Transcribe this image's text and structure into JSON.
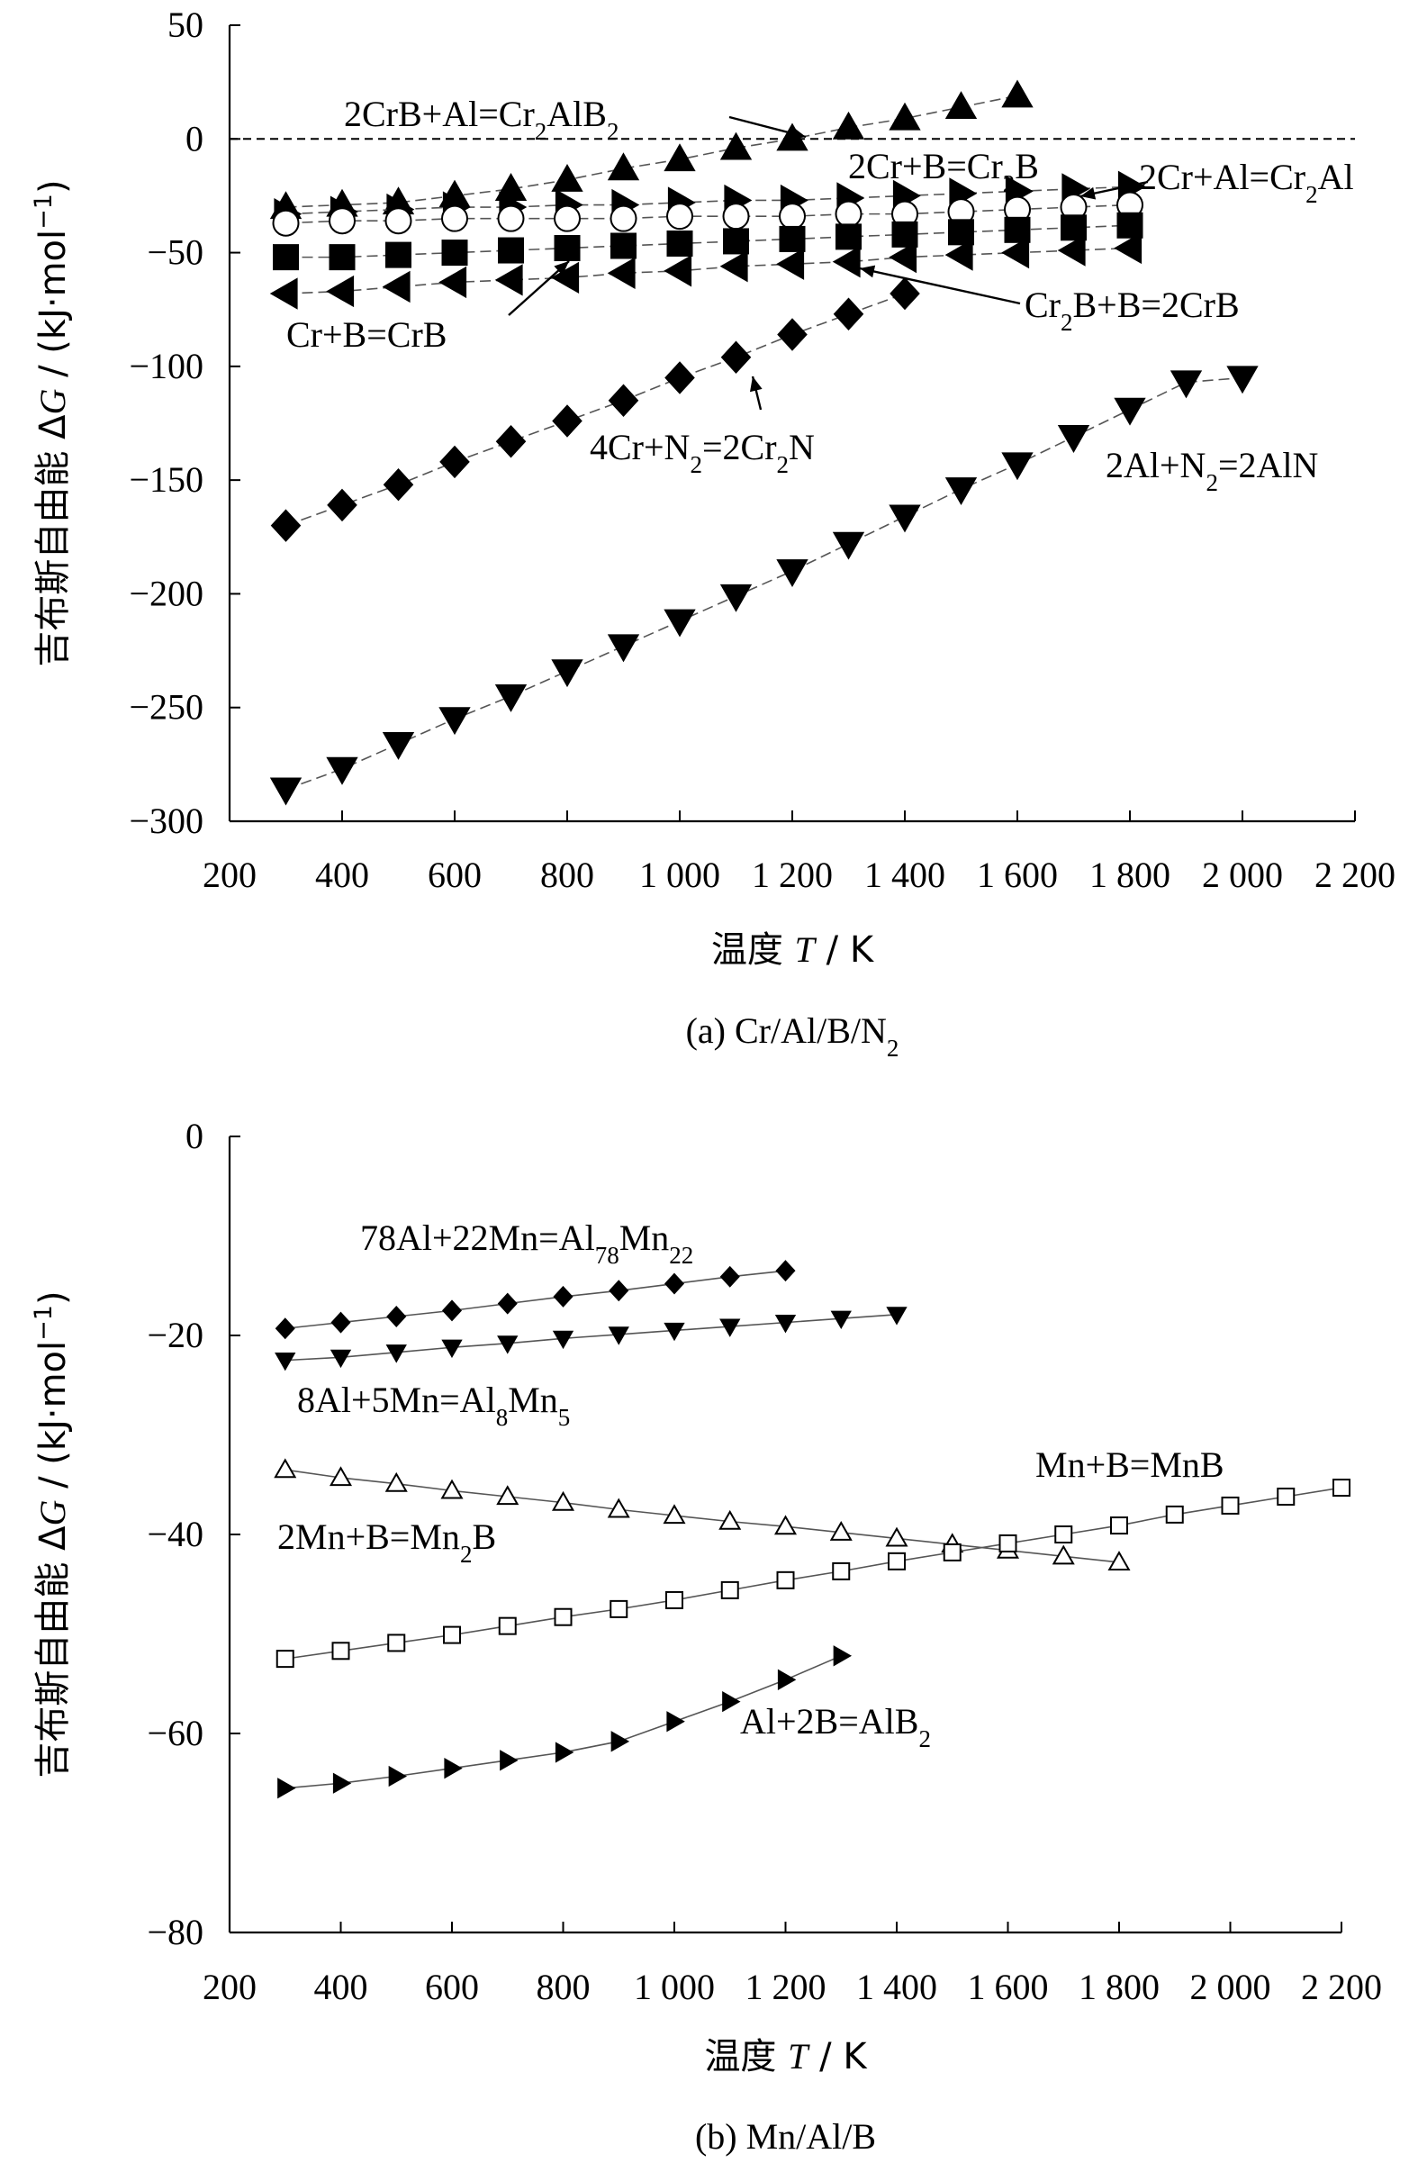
{
  "chart_data": [
    {
      "type": "scatter",
      "caption_prefix": "(a) ",
      "caption_main": "Cr/Al/B/N",
      "caption_sub": "2",
      "xlabel_main": "温度 ",
      "xlabel_var": "T",
      "xlabel_unit": " / K",
      "ylabel_main": "吉布斯自由能 Δ",
      "ylabel_var": "G",
      "ylabel_unit": " / (kJ·mol",
      "ylabel_sup": "−1",
      "ylabel_close": ")",
      "xlim": [
        200,
        2200
      ],
      "ylim": [
        -300,
        50
      ],
      "x_ticks": [
        200,
        400,
        600,
        800,
        1000,
        1200,
        1400,
        1600,
        1800,
        2000,
        2200
      ],
      "x_tick_labels": [
        "200",
        "400",
        "600",
        "800",
        "1 000",
        "1 200",
        "1 400",
        "1 600",
        "1 800",
        "2 000",
        "2 200"
      ],
      "y_ticks": [
        -300,
        -250,
        -200,
        -150,
        -100,
        -50,
        0,
        50
      ],
      "y_tick_labels": [
        "−300",
        "−250",
        "−200",
        "−150",
        "−100",
        "−50",
        "0",
        "50"
      ],
      "zero_line": true,
      "series": [
        {
          "marker": "triangle-up",
          "filled": true,
          "x": [
            300,
            400,
            500,
            600,
            700,
            800,
            900,
            1000,
            1100,
            1200,
            1300,
            1400,
            1500,
            1600
          ],
          "y": [
            -30,
            -29,
            -28,
            -25,
            -22,
            -18,
            -13,
            -9,
            -4,
            0,
            5,
            9,
            14,
            19
          ]
        },
        {
          "marker": "triangle-right",
          "filled": true,
          "x": [
            300,
            400,
            500,
            600,
            700,
            800,
            900,
            1000,
            1100,
            1200,
            1300,
            1400,
            1500,
            1600,
            1700,
            1800
          ],
          "y": [
            -33,
            -32,
            -31,
            -30,
            -30,
            -29,
            -29,
            -28,
            -27,
            -27,
            -26,
            -25,
            -24,
            -23,
            -22,
            -21
          ]
        },
        {
          "marker": "circle",
          "filled": false,
          "x": [
            300,
            400,
            500,
            600,
            700,
            800,
            900,
            1000,
            1100,
            1200,
            1300,
            1400,
            1500,
            1600,
            1700,
            1800
          ],
          "y": [
            -37,
            -36,
            -36,
            -35,
            -35,
            -35,
            -35,
            -34,
            -34,
            -34,
            -33,
            -33,
            -32,
            -31,
            -30,
            -29
          ]
        },
        {
          "marker": "square",
          "filled": true,
          "x": [
            300,
            400,
            500,
            600,
            700,
            800,
            900,
            1000,
            1100,
            1200,
            1300,
            1400,
            1500,
            1600,
            1700,
            1800
          ],
          "y": [
            -52,
            -52,
            -51,
            -50,
            -49,
            -48,
            -47,
            -46,
            -45,
            -44,
            -43,
            -42,
            -41,
            -40,
            -39,
            -38
          ]
        },
        {
          "marker": "triangle-left",
          "filled": true,
          "x": [
            300,
            400,
            500,
            600,
            700,
            800,
            900,
            1000,
            1100,
            1200,
            1300,
            1400,
            1500,
            1600,
            1700,
            1800
          ],
          "y": [
            -68,
            -67,
            -65,
            -63,
            -62,
            -61,
            -59,
            -58,
            -56,
            -55,
            -54,
            -52,
            -51,
            -50,
            -49,
            -48
          ]
        },
        {
          "marker": "diamond",
          "filled": true,
          "x": [
            300,
            400,
            500,
            600,
            700,
            800,
            900,
            1000,
            1100,
            1200,
            1300,
            1400
          ],
          "y": [
            -170,
            -161,
            -152,
            -142,
            -133,
            -124,
            -115,
            -105,
            -96,
            -86,
            -77,
            -68
          ]
        },
        {
          "marker": "triangle-down",
          "filled": true,
          "x": [
            300,
            400,
            500,
            600,
            700,
            800,
            900,
            1000,
            1100,
            1200,
            1300,
            1400,
            1500,
            1600,
            1700,
            1800,
            1900,
            2000
          ],
          "y": [
            -286,
            -277,
            -266,
            -255,
            -245,
            -234,
            -223,
            -212,
            -201,
            -190,
            -178,
            -166,
            -154,
            -143,
            -131,
            -119,
            -107,
            -105
          ]
        }
      ],
      "annotations": [
        {
          "id": "crb-al",
          "parts": [
            [
              "2CrB+Al=Cr",
              ""
            ],
            [
              "2",
              "sub"
            ],
            [
              "AlB",
              ""
            ],
            [
              "2",
              "sub"
            ]
          ]
        },
        {
          "id": "cr-b-cr2b",
          "parts": [
            [
              "2Cr+B=Cr",
              ""
            ],
            [
              "2",
              "sub"
            ],
            [
              "B",
              ""
            ]
          ]
        },
        {
          "id": "cr-al",
          "parts": [
            [
              "2Cr+Al=Cr",
              ""
            ],
            [
              "2",
              "sub"
            ],
            [
              "Al",
              ""
            ]
          ]
        },
        {
          "id": "cr2b-b",
          "parts": [
            [
              "Cr",
              ""
            ],
            [
              "2",
              "sub"
            ],
            [
              "B+B=2CrB",
              ""
            ]
          ]
        },
        {
          "id": "cr-b-crb",
          "parts": [
            [
              "Cr+B=CrB",
              ""
            ]
          ]
        },
        {
          "id": "cr-n",
          "parts": [
            [
              "4Cr+N",
              ""
            ],
            [
              "2",
              "sub"
            ],
            [
              "=2Cr",
              ""
            ],
            [
              "2",
              "sub"
            ],
            [
              "N",
              ""
            ]
          ]
        },
        {
          "id": "al-n",
          "parts": [
            [
              "2Al+N",
              ""
            ],
            [
              "2",
              "sub"
            ],
            [
              "=2AlN",
              ""
            ]
          ]
        }
      ]
    },
    {
      "type": "scatter",
      "caption_prefix": "(b) ",
      "caption_main": "Mn/Al/B",
      "caption_sub": "",
      "xlabel_main": "温度 ",
      "xlabel_var": "T",
      "xlabel_unit": " / K",
      "ylabel_main": "吉布斯自由能 Δ",
      "ylabel_var": "G",
      "ylabel_unit": " / (kJ·mol",
      "ylabel_sup": "−1",
      "ylabel_close": ")",
      "xlim": [
        200,
        2200
      ],
      "ylim": [
        -80,
        0
      ],
      "x_ticks": [
        200,
        400,
        600,
        800,
        1000,
        1200,
        1400,
        1600,
        1800,
        2000,
        2200
      ],
      "x_tick_labels": [
        "200",
        "400",
        "600",
        "800",
        "1 000",
        "1 200",
        "1 400",
        "1 600",
        "1 800",
        "2 000",
        "2 200"
      ],
      "y_ticks": [
        -80,
        -60,
        -40,
        -20,
        0
      ],
      "y_tick_labels": [
        "−80",
        "−60",
        "−40",
        "−20",
        "0"
      ],
      "zero_line": false,
      "series": [
        {
          "marker": "diamond",
          "filled": true,
          "x": [
            300,
            400,
            500,
            600,
            700,
            800,
            900,
            1000,
            1100,
            1200
          ],
          "y": [
            -19.3,
            -18.7,
            -18.1,
            -17.5,
            -16.8,
            -16.1,
            -15.5,
            -14.8,
            -14.1,
            -13.5
          ]
        },
        {
          "marker": "triangle-down",
          "filled": true,
          "x": [
            300,
            400,
            500,
            600,
            700,
            800,
            900,
            1000,
            1100,
            1200,
            1300,
            1400
          ],
          "y": [
            -22.5,
            -22.2,
            -21.7,
            -21.2,
            -20.8,
            -20.3,
            -19.9,
            -19.5,
            -19.1,
            -18.7,
            -18.3,
            -17.9
          ]
        },
        {
          "marker": "triangle-up",
          "filled": false,
          "x": [
            300,
            400,
            500,
            600,
            700,
            800,
            900,
            1000,
            1100,
            1200,
            1300,
            1400,
            1500,
            1600,
            1700,
            1800
          ],
          "y": [
            -33.5,
            -34.3,
            -34.9,
            -35.6,
            -36.2,
            -36.8,
            -37.5,
            -38.1,
            -38.7,
            -39.2,
            -39.8,
            -40.4,
            -41.0,
            -41.6,
            -42.2,
            -42.8
          ]
        },
        {
          "marker": "square",
          "filled": false,
          "x": [
            300,
            400,
            500,
            600,
            700,
            800,
            900,
            1000,
            1100,
            1200,
            1300,
            1400,
            1500,
            1600,
            1700,
            1800,
            1900,
            2000,
            2100,
            2200
          ],
          "y": [
            -52.5,
            -51.7,
            -50.9,
            -50.1,
            -49.2,
            -48.3,
            -47.5,
            -46.6,
            -45.6,
            -44.6,
            -43.7,
            -42.7,
            -41.8,
            -40.9,
            -40.0,
            -39.1,
            -38.0,
            -37.1,
            -36.2,
            -35.3
          ]
        },
        {
          "marker": "triangle-right",
          "filled": true,
          "x": [
            300,
            400,
            500,
            600,
            700,
            800,
            900,
            1000,
            1100,
            1200,
            1300
          ],
          "y": [
            -65.5,
            -65.0,
            -64.3,
            -63.5,
            -62.7,
            -61.9,
            -60.8,
            -58.8,
            -56.8,
            -54.6,
            -52.2
          ]
        }
      ],
      "annotations": [
        {
          "id": "al-mn-78",
          "parts": [
            [
              "78Al+22Mn=Al",
              ""
            ],
            [
              "78",
              "sub"
            ],
            [
              "Mn",
              ""
            ],
            [
              "22",
              "sub"
            ]
          ]
        },
        {
          "id": "al-mn-8",
          "parts": [
            [
              "8Al+5Mn=Al",
              ""
            ],
            [
              "8",
              "sub"
            ],
            [
              "Mn",
              ""
            ],
            [
              "5",
              "sub"
            ]
          ]
        },
        {
          "id": "mn-b",
          "parts": [
            [
              "Mn+B=MnB",
              ""
            ]
          ]
        },
        {
          "id": "mn2b",
          "parts": [
            [
              "2Mn+B=Mn",
              ""
            ],
            [
              "2",
              "sub"
            ],
            [
              "B",
              ""
            ]
          ]
        },
        {
          "id": "alb2",
          "parts": [
            [
              "Al+2B=AlB",
              ""
            ],
            [
              "2",
              "sub"
            ]
          ]
        }
      ]
    }
  ]
}
